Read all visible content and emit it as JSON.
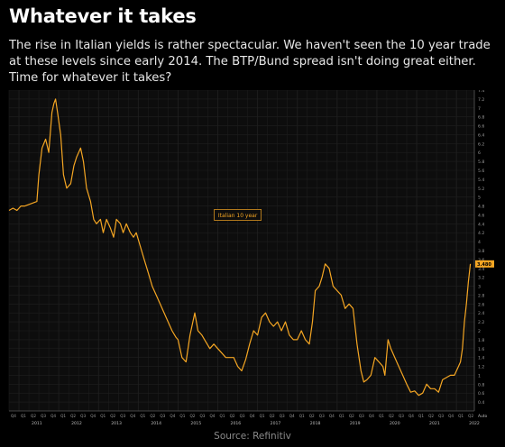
{
  "header": {
    "title": "Whatever it takes",
    "subtitle": "The rise in Italian yields is rather spectacular. We haven't seen the 10 year trade at these levels since early 2014. The BTP/Bund spread isn't doing great either. Time for whatever it takes?"
  },
  "footer": {
    "source": "Source: Refinitiv"
  },
  "colors": {
    "background": "#000000",
    "plot_bg": "#0d0d0d",
    "grid": "#1f1f1f",
    "line": "#f5a623",
    "last_value_bg": "#f5a623"
  },
  "chart_data": {
    "type": "line",
    "title": "",
    "xlabel": "",
    "ylabel": "",
    "series": [
      {
        "name": "Italian 10 year",
        "x": [
          2010.75,
          2010.85,
          2010.95,
          2011.05,
          2011.15,
          2011.3,
          2011.45,
          2011.5,
          2011.58,
          2011.67,
          2011.75,
          2011.83,
          2011.88,
          2011.92,
          2011.97,
          2012.05,
          2012.12,
          2012.2,
          2012.3,
          2012.38,
          2012.45,
          2012.55,
          2012.62,
          2012.7,
          2012.8,
          2012.88,
          2012.95,
          2013.05,
          2013.12,
          2013.2,
          2013.3,
          2013.38,
          2013.45,
          2013.55,
          2013.62,
          2013.7,
          2013.8,
          2013.88,
          2013.95,
          2014.05,
          2014.15,
          2014.25,
          2014.35,
          2014.45,
          2014.55,
          2014.65,
          2014.75,
          2014.85,
          2014.95,
          2015.0,
          2015.1,
          2015.2,
          2015.3,
          2015.42,
          2015.5,
          2015.6,
          2015.7,
          2015.8,
          2015.9,
          2016.0,
          2016.1,
          2016.2,
          2016.3,
          2016.4,
          2016.5,
          2016.6,
          2016.7,
          2016.8,
          2016.9,
          2017.0,
          2017.1,
          2017.2,
          2017.3,
          2017.4,
          2017.5,
          2017.6,
          2017.7,
          2017.8,
          2017.9,
          2018.0,
          2018.1,
          2018.2,
          2018.3,
          2018.38,
          2018.45,
          2018.55,
          2018.62,
          2018.7,
          2018.8,
          2018.9,
          2019.0,
          2019.1,
          2019.2,
          2019.3,
          2019.4,
          2019.5,
          2019.6,
          2019.67,
          2019.75,
          2019.85,
          2019.95,
          2020.05,
          2020.15,
          2020.2,
          2020.28,
          2020.35,
          2020.45,
          2020.55,
          2020.65,
          2020.75,
          2020.85,
          2020.95,
          2021.05,
          2021.15,
          2021.25,
          2021.35,
          2021.45,
          2021.55,
          2021.65,
          2021.75,
          2021.85,
          2021.95,
          2022.05,
          2022.1,
          2022.15,
          2022.2,
          2022.25,
          2022.3,
          2022.35
        ],
        "y": [
          4.7,
          4.75,
          4.7,
          4.8,
          4.8,
          4.85,
          4.9,
          5.5,
          6.1,
          6.3,
          6.0,
          6.9,
          7.1,
          7.2,
          6.9,
          6.4,
          5.5,
          5.2,
          5.3,
          5.7,
          5.9,
          6.1,
          5.8,
          5.2,
          4.9,
          4.5,
          4.4,
          4.5,
          4.2,
          4.5,
          4.3,
          4.1,
          4.5,
          4.4,
          4.2,
          4.4,
          4.2,
          4.1,
          4.2,
          3.9,
          3.6,
          3.3,
          3.0,
          2.8,
          2.6,
          2.4,
          2.2,
          2.0,
          1.85,
          1.8,
          1.4,
          1.3,
          1.9,
          2.4,
          2.0,
          1.9,
          1.75,
          1.6,
          1.7,
          1.6,
          1.5,
          1.4,
          1.4,
          1.4,
          1.2,
          1.1,
          1.35,
          1.7,
          2.0,
          1.9,
          2.3,
          2.4,
          2.2,
          2.1,
          2.2,
          2.0,
          2.2,
          1.9,
          1.8,
          1.8,
          2.0,
          1.8,
          1.7,
          2.2,
          2.9,
          3.0,
          3.2,
          3.5,
          3.4,
          3.0,
          2.9,
          2.8,
          2.5,
          2.6,
          2.5,
          1.7,
          1.1,
          0.85,
          0.9,
          1.0,
          1.4,
          1.3,
          1.2,
          1.0,
          1.8,
          1.6,
          1.4,
          1.2,
          1.0,
          0.8,
          0.62,
          0.65,
          0.55,
          0.6,
          0.8,
          0.7,
          0.7,
          0.62,
          0.9,
          0.95,
          1.0,
          1.0,
          1.2,
          1.3,
          1.6,
          2.2,
          2.6,
          3.1,
          3.5
        ],
        "last_value": "3.480"
      }
    ],
    "xlim": [
      2010.75,
      2022.45
    ],
    "ylim": [
      0.2,
      7.4
    ],
    "y_ticks": [
      "0.4",
      "0.6",
      "0.8",
      "1",
      "1.2",
      "1.4",
      "1.6",
      "1.8",
      "2",
      "2.2",
      "2.4",
      "2.6",
      "2.8",
      "3",
      "3.2",
      "3.4",
      "3.6",
      "3.8",
      "4",
      "4.2",
      "4.4",
      "4.6",
      "4.8",
      "5",
      "5.2",
      "5.4",
      "5.6",
      "5.8",
      "6",
      "6.2",
      "6.4",
      "6.6",
      "6.8",
      "7",
      "7.2",
      "7.4"
    ],
    "x_years": [
      "2011",
      "2012",
      "2013",
      "2014",
      "2015",
      "2016",
      "2017",
      "2018",
      "2019",
      "2020",
      "2021",
      "2022"
    ],
    "x_quarter_labels": [
      "Q1",
      "Q2",
      "Q3",
      "Q4"
    ],
    "x_axis_label_right": "Auto",
    "series_label": "Italian 10 year",
    "grid": true,
    "legend": "center"
  }
}
